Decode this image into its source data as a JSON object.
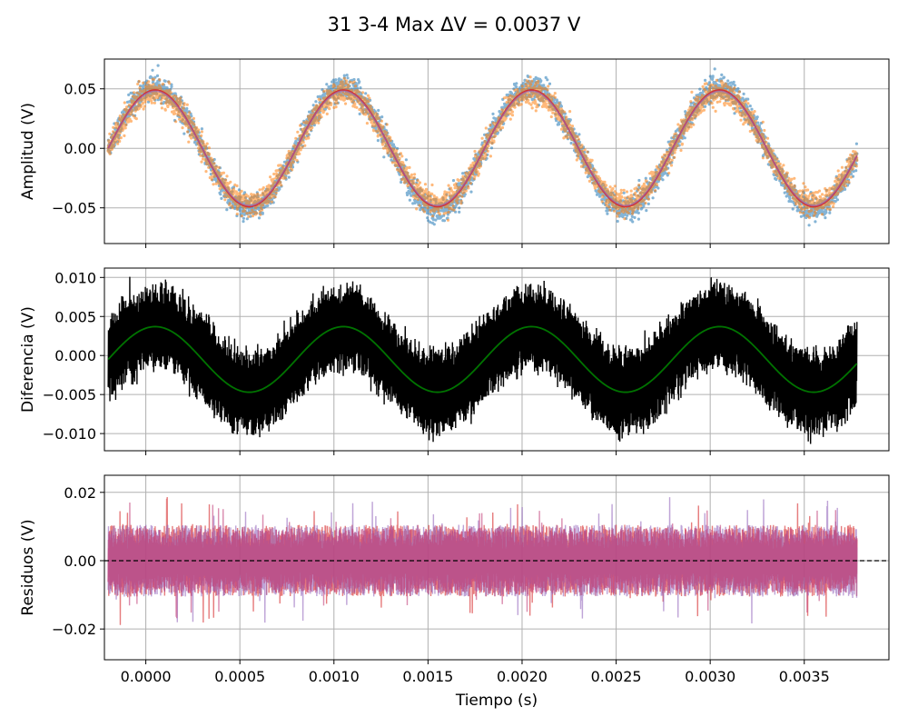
{
  "figure": {
    "title_text": "31 3-4 Max ΔV = 0.0037 V"
  },
  "chart_data": [
    {
      "type": "scatter",
      "ylabel": "Amplitud (V)",
      "xlim": [
        -0.00022,
        0.00395
      ],
      "ylim": [
        -0.08,
        0.075
      ],
      "xticks": [
        0.0,
        0.0005,
        0.001,
        0.0015,
        0.002,
        0.0025,
        0.003,
        0.0035
      ],
      "yticks": [
        -0.05,
        0.0,
        0.05
      ],
      "ytick_labels": [
        "−0.05",
        "0.00",
        "0.05"
      ],
      "grid": true,
      "signal": {
        "x_start": -0.0002,
        "x_end": 0.00378,
        "frequency_hz": 1000,
        "phase_zero_crossing": -0.0002
      },
      "series": [
        {
          "kind": "points",
          "amplitude": 0.051,
          "noise": 0.009,
          "color": "#1f77b4"
        },
        {
          "kind": "points",
          "amplitude": 0.047,
          "noise": 0.009,
          "color": "#ff7f0e"
        },
        {
          "kind": "fit",
          "amplitude": 0.049,
          "color": "#d62728"
        },
        {
          "kind": "fit",
          "amplitude": 0.048,
          "color": "#9467bd"
        }
      ]
    },
    {
      "type": "line",
      "ylabel": "Diferencia (V)",
      "xlim": [
        -0.00022,
        0.00395
      ],
      "ylim": [
        -0.0122,
        0.0112
      ],
      "xticks": [
        0.0,
        0.0005,
        0.001,
        0.0015,
        0.002,
        0.0025,
        0.003,
        0.0035
      ],
      "yticks": [
        -0.01,
        -0.005,
        0.0,
        0.005,
        0.01
      ],
      "ytick_labels": [
        "−0.010",
        "−0.005",
        "0.000",
        "0.005",
        "0.010"
      ],
      "grid": true,
      "series": [
        {
          "kind": "noisy",
          "offset": -0.0005,
          "amplitude": 0.0042,
          "noise": 0.0055,
          "color": "#000000"
        },
        {
          "kind": "fit",
          "offset": -0.0005,
          "amplitude": 0.0042,
          "color": "#008000"
        }
      ]
    },
    {
      "type": "line",
      "ylabel": "Residuos (V)",
      "xlabel": "Tiempo (s)",
      "xlim": [
        -0.00022,
        0.00395
      ],
      "ylim": [
        -0.029,
        0.025
      ],
      "xticks": [
        0.0,
        0.0005,
        0.001,
        0.0015,
        0.002,
        0.0025,
        0.003,
        0.0035
      ],
      "xtick_labels": [
        "0.0000",
        "0.0005",
        "0.0010",
        "0.0015",
        "0.0020",
        "0.0025",
        "0.0030",
        "0.0035"
      ],
      "yticks": [
        -0.02,
        0.0,
        0.02
      ],
      "ytick_labels": [
        "−0.02",
        "0.00",
        "0.02"
      ],
      "grid": true,
      "zero_line": {
        "value": 0.0,
        "style": "dashed",
        "color": "#000000"
      },
      "series": [
        {
          "kind": "residual",
          "noise": 0.0105,
          "color": "#d62728"
        },
        {
          "kind": "residual",
          "noise": 0.0105,
          "color": "#9467bd"
        },
        {
          "kind": "residual",
          "noise": 0.0095,
          "color": "#c2407a"
        }
      ]
    }
  ]
}
